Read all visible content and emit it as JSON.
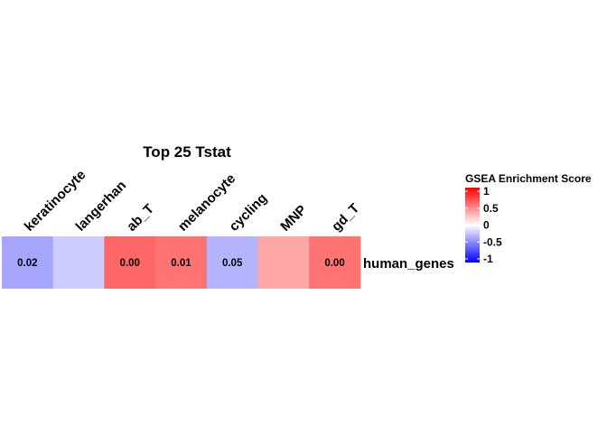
{
  "chart_data": {
    "type": "heatmap",
    "title": "Top 25 Tstat",
    "columns": [
      "keratinocyte",
      "langerhan",
      "ab_T",
      "melanocyte",
      "cycling",
      "MNP",
      "gd_T"
    ],
    "rows": [
      "human_genes"
    ],
    "values": [
      [
        -0.35,
        -0.2,
        0.6,
        0.55,
        -0.3,
        0.35,
        0.55
      ]
    ],
    "cell_labels": [
      [
        "0.02",
        "",
        "0.00",
        "0.01",
        "0.05",
        "",
        "0.00"
      ]
    ],
    "color_scale": {
      "low": "#0000ff",
      "mid": "#ffffff",
      "high": "#ff0000",
      "domain": [
        -1,
        1
      ]
    },
    "legend": {
      "title": "GSEA Enrichment Score",
      "ticks": [
        1,
        0.5,
        0,
        -0.5,
        -1
      ],
      "tick_labels": [
        "1",
        "0.5",
        "0",
        "-0.5",
        "-1"
      ],
      "position": "right"
    }
  }
}
